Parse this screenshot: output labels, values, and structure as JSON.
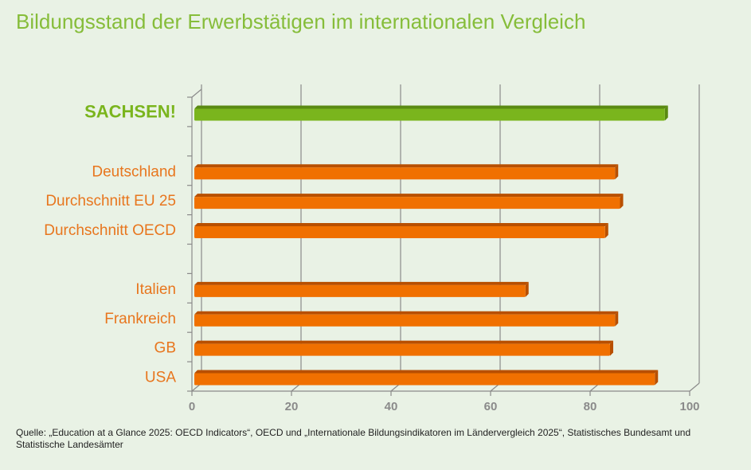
{
  "title": "Bildungsstand der Erwerbstätigen im internationalen Vergleich",
  "source": "Quelle: „Education at a Glance 2025: OECD Indicators“, OECD und „Internationale Bildungsindikatoren im Ländervergleich 2025“, Statistisches Bundesamt und Statistische Landesämter",
  "chart_data": {
    "type": "bar",
    "orientation": "horizontal",
    "style": "3d",
    "categories": [
      "SACHSEN!",
      "",
      "Deutschland",
      "Durchschnitt EU 25",
      "Durchschnitt OECD",
      "",
      "Italien",
      "Frankreich",
      "GB",
      "USA"
    ],
    "values": [
      95,
      null,
      85,
      86,
      83,
      null,
      67,
      85,
      84,
      93
    ],
    "highlight_index": 0,
    "xlim": [
      0,
      100
    ],
    "xticks": [
      "0",
      "20",
      "40",
      "60",
      "80",
      "100"
    ],
    "grid": true,
    "colors": {
      "highlight": "#7ab51d",
      "default": "#f07000",
      "label_default": "#e8761e",
      "label_highlight": "#7ab51d"
    }
  }
}
